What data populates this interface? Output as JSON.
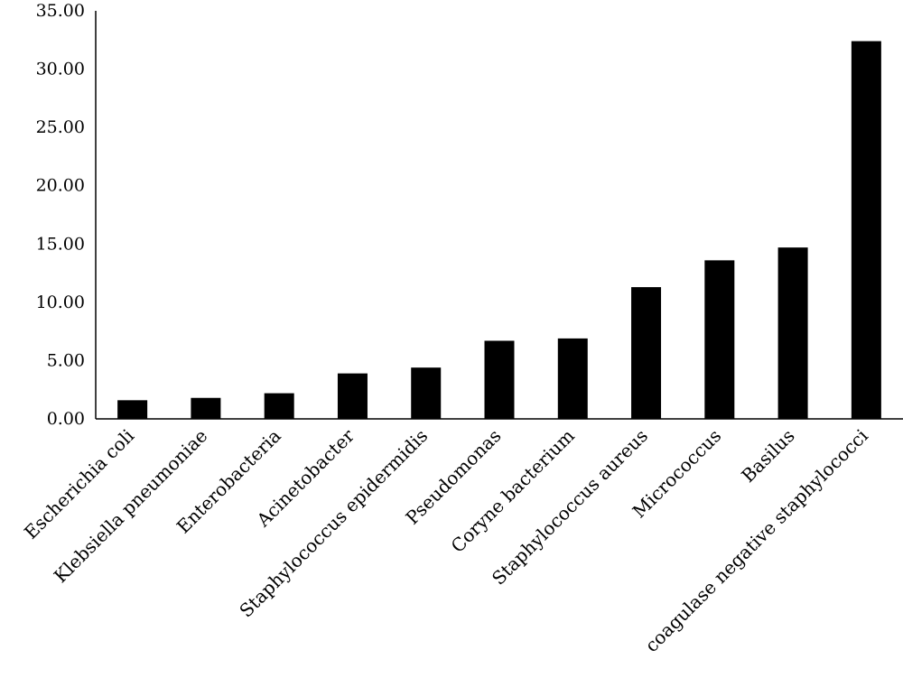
{
  "chart_data": {
    "type": "bar",
    "title": "",
    "xlabel": "",
    "ylabel": "",
    "ylim": [
      0,
      35
    ],
    "yticks": [
      "0.00",
      "5.00",
      "10.00",
      "15.00",
      "20.00",
      "25.00",
      "30.00",
      "35.00"
    ],
    "grid": false,
    "legend": "none",
    "bar_color": "#000000",
    "categories": [
      "Escherichia coli",
      "Klebsiella pneumoniae",
      "Enterobacteria",
      "Acinetobacter",
      "Staphylococcus epidermidis",
      "Pseudomonas",
      "Coryne bacterium",
      "Staphylococcus aureus",
      "Micrococcus",
      "Basilus",
      "coagulase negative staphylococci"
    ],
    "values": [
      1.6,
      1.8,
      2.2,
      3.9,
      4.4,
      6.7,
      6.9,
      11.3,
      13.6,
      14.7,
      32.4
    ]
  }
}
